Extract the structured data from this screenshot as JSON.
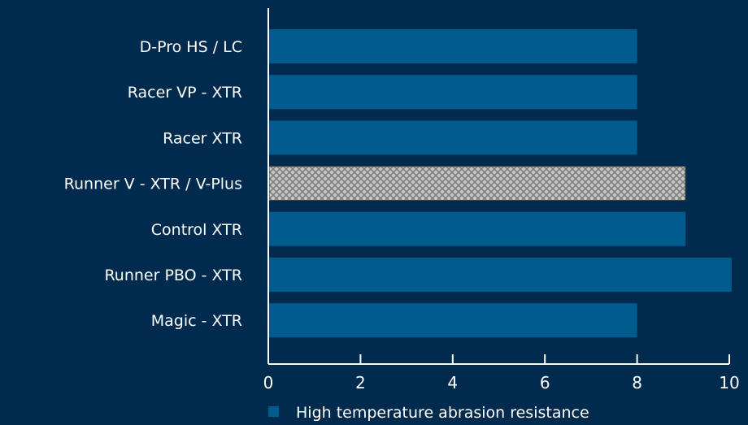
{
  "chart_data": {
    "type": "bar",
    "orientation": "horizontal",
    "categories": [
      "D-Pro HS / LC",
      "Racer VP - XTR",
      "Racer XTR",
      "Runner V - XTR / V-Plus",
      "Control XTR",
      "Runner PBO - XTR",
      "Magic - XTR"
    ],
    "series": [
      {
        "name": "High temperature abrasion resistance",
        "values": [
          8,
          8,
          8,
          9.05,
          9.05,
          10.05,
          8
        ],
        "highlight_index": 3
      }
    ],
    "xlim": [
      0,
      10
    ],
    "xticks": [
      "0",
      "2",
      "4",
      "6",
      "8",
      "10"
    ],
    "grid": false,
    "legend_position": "bottom"
  },
  "colors": {
    "background": "#002b4e",
    "bar": "#005b8f",
    "axis": "#ffffff",
    "highlight_fill": "#c8c8c8",
    "highlight_pattern": "#8a8a8a"
  }
}
